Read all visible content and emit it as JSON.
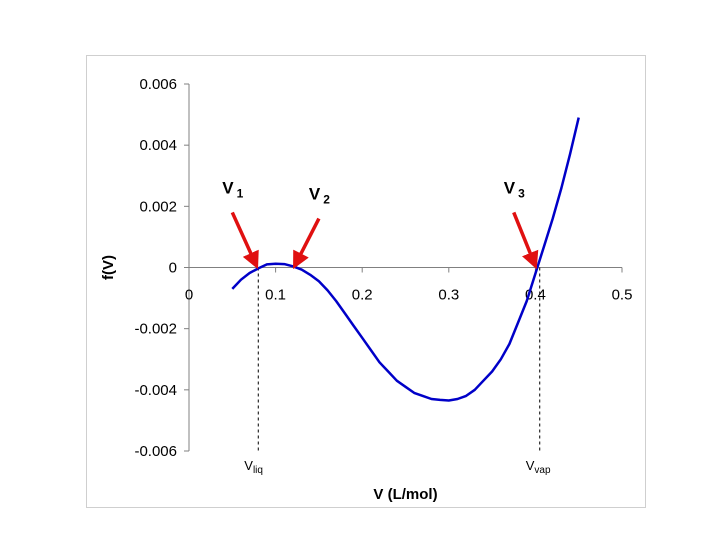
{
  "chart_data": {
    "type": "line",
    "title": "",
    "xlabel": "V (L/mol)",
    "ylabel": "f(V)",
    "xlim": [
      0,
      0.5
    ],
    "ylim": [
      -0.006,
      0.006
    ],
    "xticks": [
      "0",
      "0.1",
      "0.2",
      "0.3",
      "0.4",
      "0.5"
    ],
    "yticks": [
      "0.006",
      "0.004",
      "0.002",
      "0",
      "-0.002",
      "-0.004",
      "-0.006"
    ],
    "grid": false,
    "legend": "none",
    "series": [
      {
        "color": "#0000c8",
        "x": [
          0.05,
          0.06,
          0.07,
          0.08,
          0.09,
          0.1,
          0.11,
          0.12,
          0.13,
          0.14,
          0.15,
          0.16,
          0.17,
          0.18,
          0.19,
          0.2,
          0.21,
          0.22,
          0.23,
          0.24,
          0.25,
          0.26,
          0.27,
          0.28,
          0.29,
          0.3,
          0.31,
          0.32,
          0.33,
          0.34,
          0.35,
          0.36,
          0.37,
          0.38,
          0.39,
          0.4,
          0.41,
          0.42,
          0.43,
          0.44,
          0.45
        ],
        "y": [
          -0.0007,
          -0.0004,
          -0.00018,
          -3e-05,
          0.0001,
          0.00012,
          0.00011,
          4e-05,
          -7e-05,
          -0.00024,
          -0.00045,
          -0.00075,
          -0.0011,
          -0.0015,
          -0.0019,
          -0.0023,
          -0.0027,
          -0.0031,
          -0.0034,
          -0.0037,
          -0.0039,
          -0.0041,
          -0.0042,
          -0.0043,
          -0.00433,
          -0.00435,
          -0.0043,
          -0.0042,
          -0.004,
          -0.0037,
          -0.0034,
          -0.003,
          -0.0025,
          -0.0018,
          -0.0011,
          -0.0002,
          0.0007,
          0.0016,
          0.0026,
          0.0037,
          0.0049
        ]
      }
    ],
    "annotations": [
      {
        "main": "V",
        "sub": "1",
        "tail": [
          0.05,
          0.0018
        ],
        "head": [
          0.078,
          5e-05
        ]
      },
      {
        "main": "V",
        "sub": "2",
        "tail": [
          0.15,
          0.0016
        ],
        "head": [
          0.122,
          5e-05
        ]
      },
      {
        "main": "V",
        "sub": "3",
        "tail": [
          0.375,
          0.0018
        ],
        "head": [
          0.4,
          5e-05
        ]
      }
    ],
    "arrow_color": "#e01010",
    "markers": [
      {
        "main": "V",
        "sub": "liq",
        "x": 0.08
      },
      {
        "main": "V",
        "sub": "vap",
        "x": 0.405
      }
    ]
  }
}
